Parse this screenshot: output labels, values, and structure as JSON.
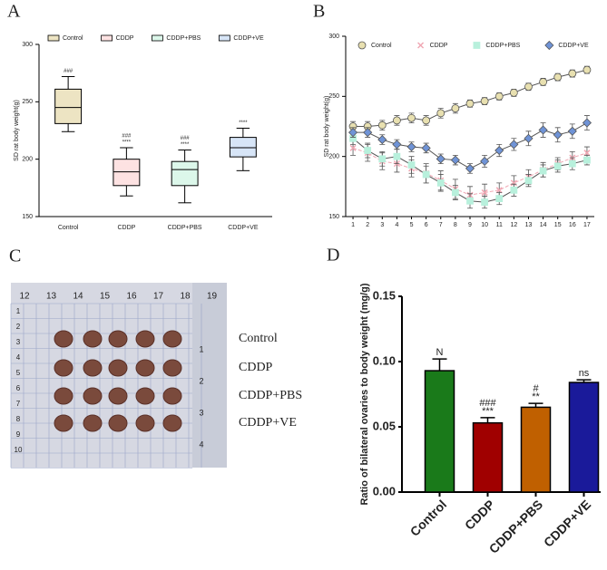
{
  "chart_data": [
    {
      "type": "box",
      "panel_label": "A",
      "ylabel": "SD rat body weight(g)",
      "categories": [
        "Control",
        "CDDP",
        "CDDP+PBS",
        "CDDP+VE"
      ],
      "colors": [
        "#ede4c3",
        "#fde2e2",
        "#dcf7ea",
        "#d7e5f7"
      ],
      "min": [
        224,
        168,
        162,
        190
      ],
      "q1": [
        231,
        177,
        177,
        202
      ],
      "median": [
        245,
        189,
        191,
        210
      ],
      "q3": [
        261,
        200,
        198,
        219
      ],
      "max": [
        272,
        210,
        208,
        227
      ],
      "annotations_top": [
        "###",
        "###",
        "###",
        null
      ],
      "annotations_bottom": [
        null,
        "****",
        "****",
        "****"
      ],
      "ylim": [
        150,
        300
      ],
      "yticks": [
        150,
        200,
        250,
        300
      ]
    },
    {
      "type": "line",
      "panel_label": "B",
      "ylabel": "SD rat body weight(g)",
      "x": [
        1,
        2,
        3,
        4,
        5,
        6,
        7,
        8,
        9,
        10,
        11,
        12,
        13,
        14,
        15,
        16,
        17
      ],
      "xlim": [
        0.5,
        17.5
      ],
      "xticks": [
        1,
        2,
        3,
        4,
        5,
        6,
        7,
        8,
        9,
        10,
        11,
        12,
        13,
        14,
        15,
        16,
        17
      ],
      "ylim": [
        150,
        300
      ],
      "yticks": [
        150,
        200,
        250,
        300
      ],
      "series": [
        {
          "name": "Control",
          "color": "#e8e0b0",
          "marker": "circle",
          "values": [
            225,
            225,
            226,
            230,
            232,
            230,
            236,
            240,
            244,
            246,
            250,
            253,
            258,
            262,
            266,
            269,
            272
          ],
          "errors": [
            4,
            4,
            4,
            4,
            4,
            4,
            4,
            4,
            3,
            3,
            3,
            3,
            3,
            3,
            3,
            3,
            3
          ]
        },
        {
          "name": "CDDP",
          "color": "#f0a8b4",
          "marker": "cross",
          "values": [
            207,
            203,
            196,
            194,
            190,
            186,
            180,
            173,
            168,
            170,
            172,
            178,
            183,
            189,
            194,
            199,
            203
          ],
          "errors": [
            6,
            7,
            7,
            7,
            7,
            8,
            8,
            8,
            7,
            7,
            6,
            6,
            6,
            6,
            5,
            5,
            5
          ]
        },
        {
          "name": "CDDP+PBS",
          "color": "#b8f0dc",
          "marker": "square",
          "values": [
            215,
            205,
            198,
            200,
            193,
            185,
            178,
            170,
            163,
            162,
            165,
            172,
            180,
            188,
            192,
            194,
            197
          ],
          "errors": [
            5,
            6,
            6,
            6,
            7,
            7,
            7,
            6,
            6,
            5,
            5,
            5,
            5,
            5,
            5,
            5,
            4
          ]
        },
        {
          "name": "CDDP+VE",
          "color": "#6f93d6",
          "marker": "diamond",
          "values": [
            220,
            220,
            214,
            210,
            208,
            207,
            198,
            197,
            190,
            196,
            205,
            210,
            215,
            222,
            218,
            221,
            228
          ],
          "errors": [
            4,
            4,
            4,
            4,
            4,
            4,
            4,
            4,
            4,
            5,
            5,
            5,
            6,
            6,
            6,
            6,
            6
          ]
        }
      ]
    },
    {
      "type": "bar",
      "panel_label": "D",
      "ylabel": "Ratio of bilateral ovaries to body weight (mg/g)",
      "categories": [
        "Control",
        "CDDP",
        "CDDP+PBS",
        "CDDP+VE"
      ],
      "values": [
        0.093,
        0.053,
        0.065,
        0.084
      ],
      "errors": [
        0.009,
        0.004,
        0.003,
        0.002
      ],
      "colors": [
        "#1a7a1a",
        "#a00000",
        "#c06000",
        "#1a1a9a"
      ],
      "annotations_top": [
        "N",
        "###",
        "#",
        "ns"
      ],
      "annotations_bottom": [
        null,
        "***",
        "**",
        null
      ],
      "ylim": [
        0,
        0.15
      ],
      "yticks": [
        {
          "value": 0,
          "label": "0.00"
        },
        {
          "value": 0.05,
          "label": "0.05"
        },
        {
          "value": 0.1,
          "label": "0.10"
        },
        {
          "value": 0.15,
          "label": "0.15"
        }
      ]
    }
  ],
  "photo": {
    "panel_label": "C",
    "labels": [
      "Control",
      "CDDP",
      "CDDP+PBS",
      "CDDP+VE"
    ],
    "ruler_top": [
      "12",
      "13",
      "14",
      "15",
      "16",
      "17",
      "18",
      "19"
    ],
    "ruler_left": [
      "1",
      "2",
      "3",
      "4",
      "5",
      "6",
      "7",
      "8",
      "9",
      "10"
    ],
    "ruler_right": [
      "1",
      "2",
      "3",
      "4"
    ]
  }
}
